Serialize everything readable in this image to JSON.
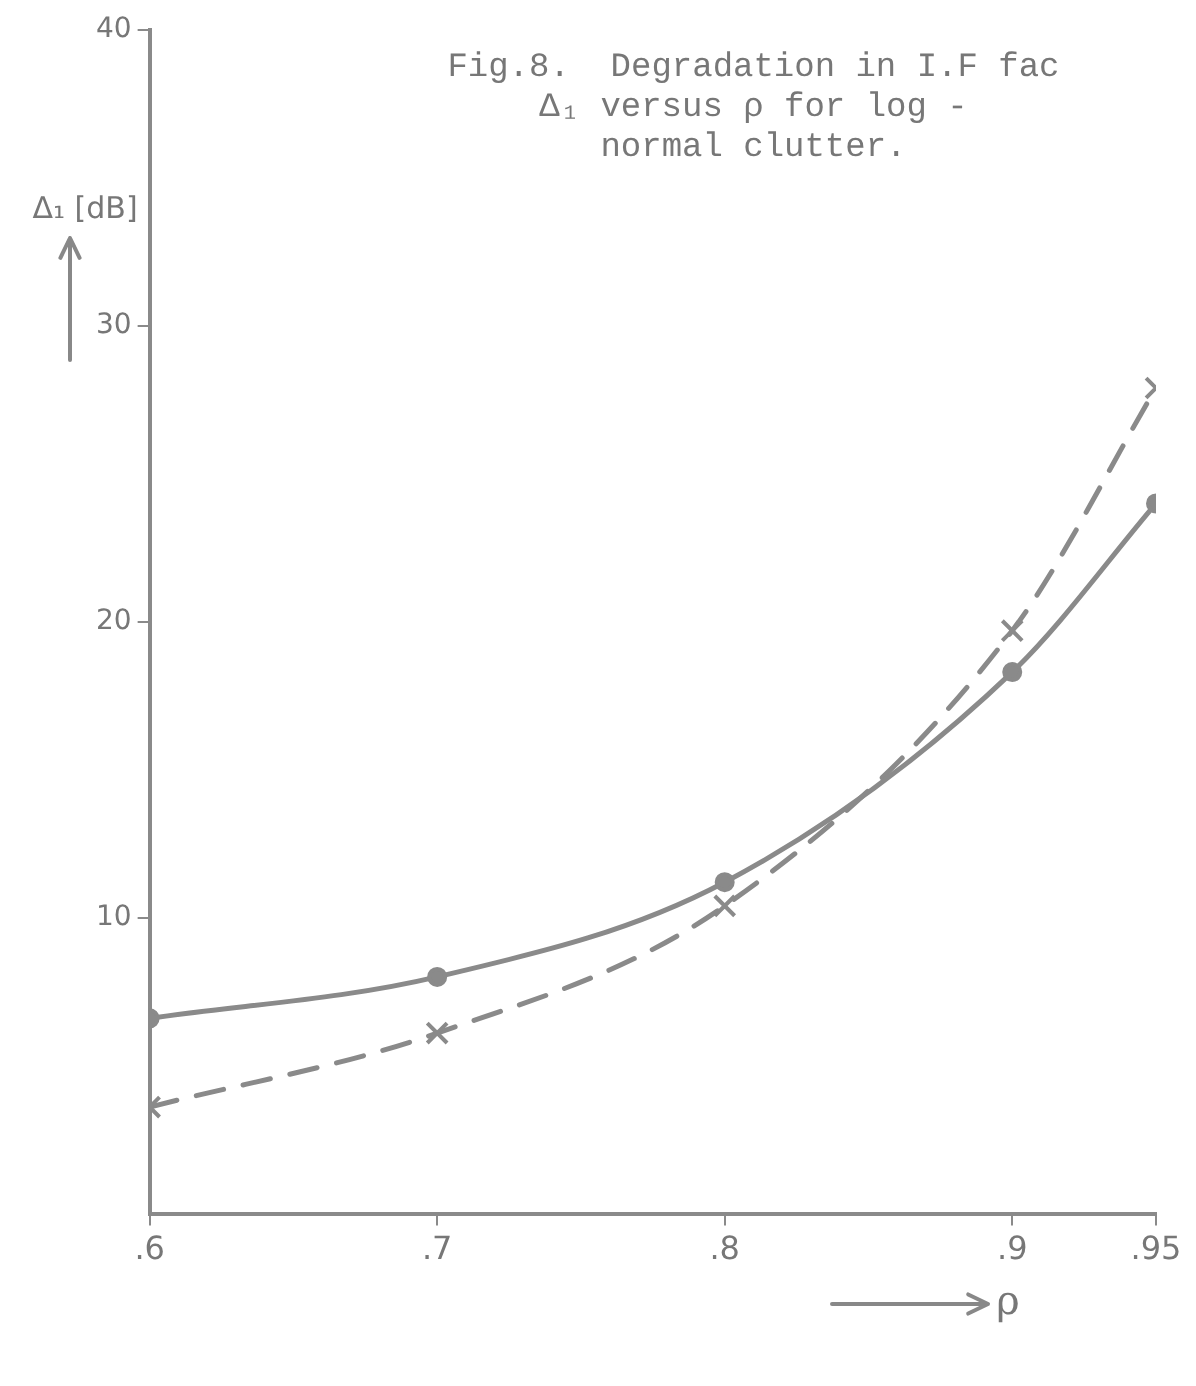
{
  "chart_data": {
    "type": "line",
    "title": "Fig.8.  Degradation in I.F fac\nΔ₁ versus ρ for log -\nnormal clutter.",
    "ylabel": "Δ₁ [dB]",
    "xlabel": "ρ",
    "x": [
      0.6,
      0.7,
      0.8,
      0.9,
      0.95
    ],
    "series": [
      {
        "color": "#8a8a8a",
        "marker": "circle",
        "line_style": "solid",
        "values": [
          6.6,
          8.0,
          11.2,
          18.3,
          24.0
        ]
      },
      {
        "color": "#8a8a8a",
        "marker": "cross",
        "line_style": "dashed",
        "values": [
          3.6,
          6.1,
          10.4,
          19.7,
          27.9
        ]
      }
    ],
    "xlim": [
      0.6,
      0.95
    ],
    "xticks": [
      {
        "value": 0.6,
        "label": ".6"
      },
      {
        "value": 0.7,
        "label": ".7"
      },
      {
        "value": 0.8,
        "label": ".8"
      },
      {
        "value": 0.9,
        "label": ".9"
      },
      {
        "value": 0.95,
        "label": ".95"
      }
    ],
    "ylim": [
      0,
      40
    ],
    "yticks": [
      10,
      20,
      30,
      40
    ],
    "grid": false,
    "legend": false
  }
}
